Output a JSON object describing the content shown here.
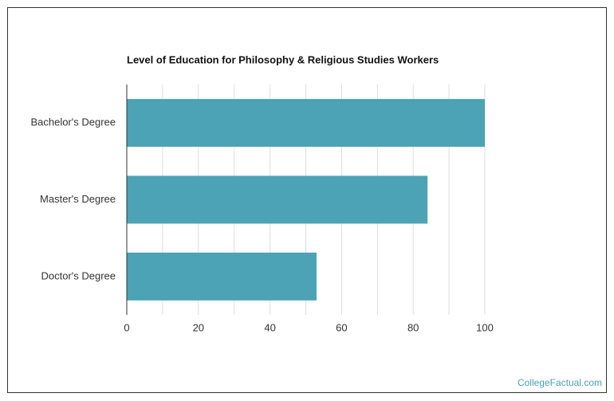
{
  "chart_data": {
    "type": "hbar",
    "title": "Level of Education for Philosophy & Religious Studies Workers",
    "categories": [
      "Bachelor's Degree",
      "Master's Degree",
      "Doctor's Degree"
    ],
    "values": [
      100,
      84,
      53
    ],
    "color": "#4ba3b5",
    "xlim": [
      0,
      100
    ],
    "xticks": [
      0,
      20,
      40,
      60,
      80,
      100
    ],
    "minor_xticks": [
      10,
      30,
      50,
      70,
      90
    ],
    "grid": true,
    "source": "CollegeFactual.com"
  }
}
